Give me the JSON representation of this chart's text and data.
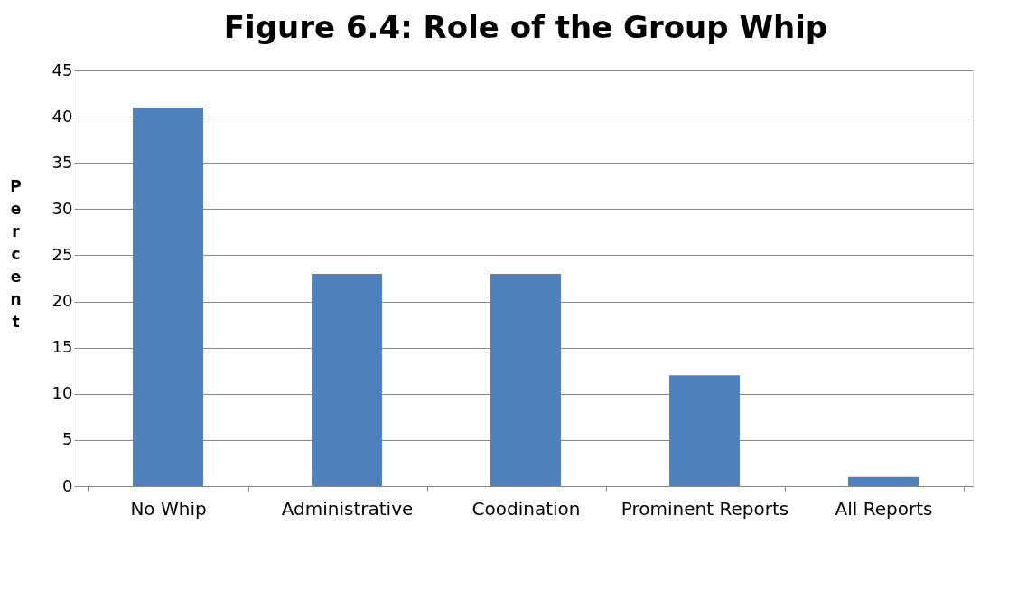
{
  "chart_data": {
    "type": "bar",
    "title": "Figure 6.4: Role of the Group Whip",
    "ylabel": "Percent",
    "categories": [
      "No Whip",
      "Administrative",
      "Coodination",
      "Prominent Reports",
      "All Reports"
    ],
    "values": [
      41,
      23,
      23,
      12,
      1
    ],
    "color": "#4f81bd",
    "ylim": [
      0,
      45
    ],
    "yticks": [
      0,
      5,
      10,
      15,
      20,
      25,
      30,
      35,
      40,
      45
    ],
    "grid": "y"
  }
}
